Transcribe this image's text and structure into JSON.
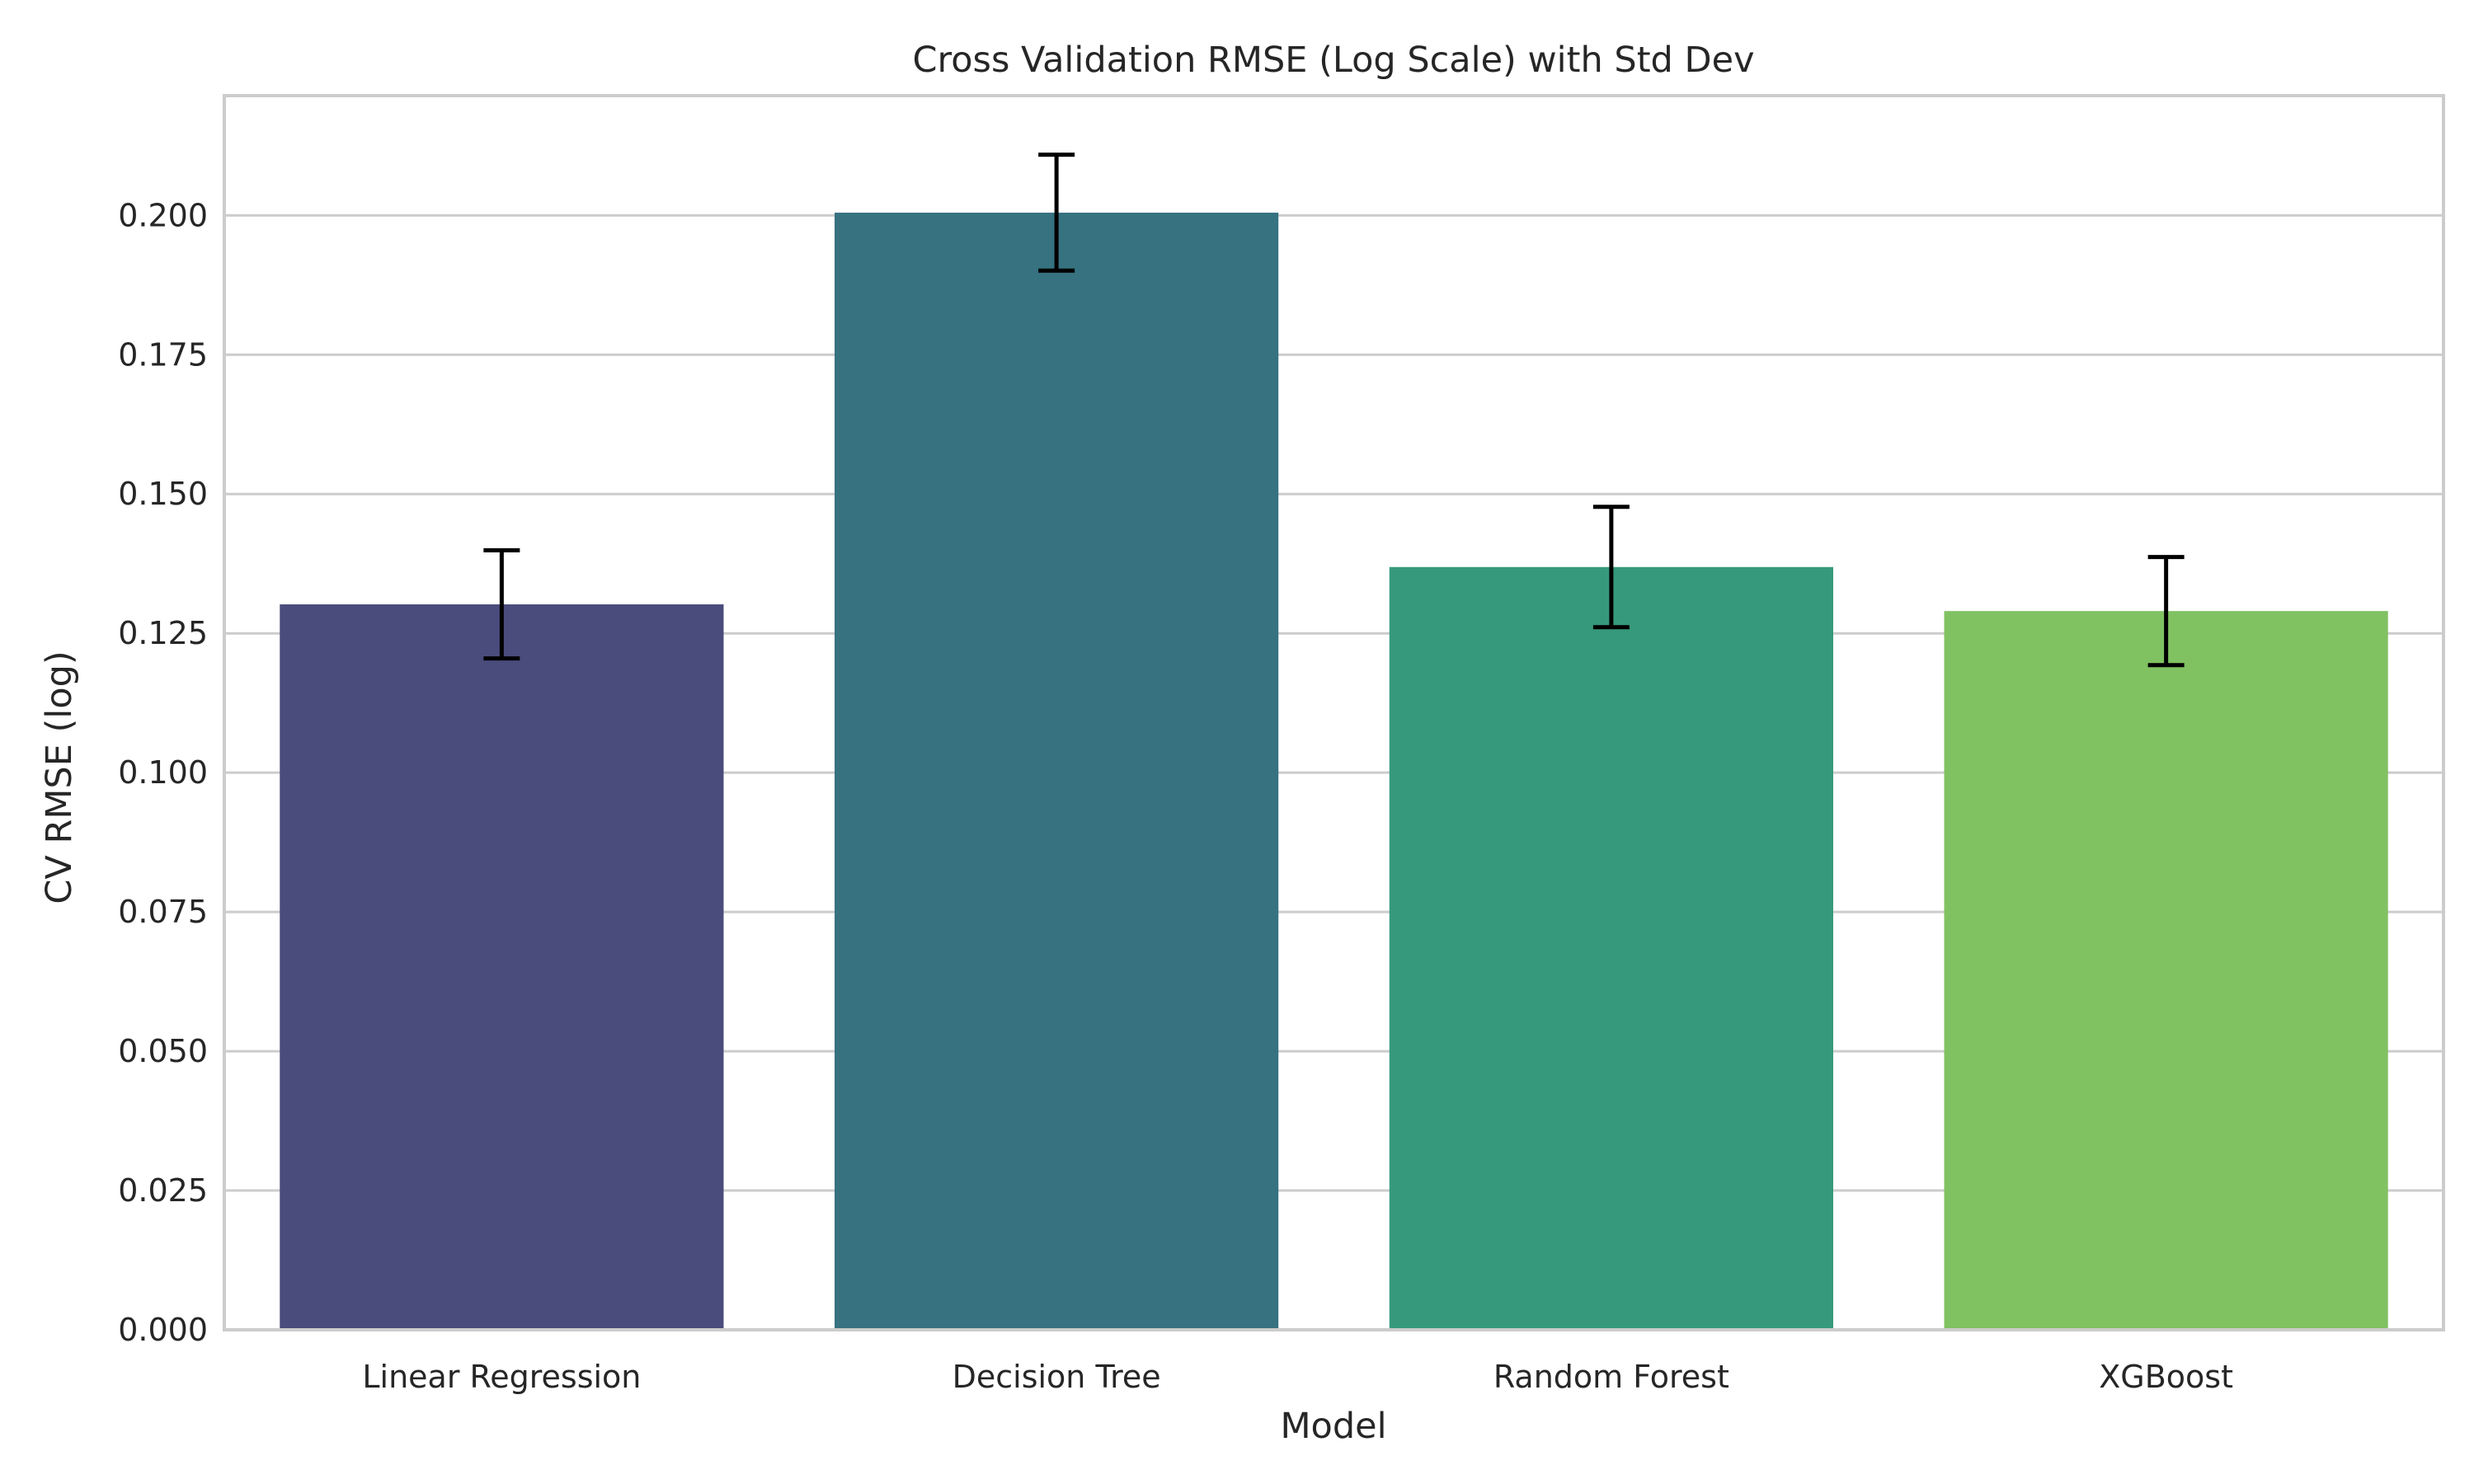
{
  "chart_data": {
    "type": "bar",
    "title": "Cross Validation RMSE (Log Scale) with Std Dev",
    "xlabel": "Model",
    "ylabel": "CV RMSE (log)",
    "categories": [
      "Linear Regression",
      "Decision Tree",
      "Random Forest",
      "XGBoost"
    ],
    "values": [
      0.1302,
      0.2005,
      0.1369,
      0.129
    ],
    "errors": [
      0.0097,
      0.0104,
      0.0108,
      0.0097
    ],
    "colors": [
      "#4a4c7c",
      "#367280",
      "#36997b",
      "#80c262"
    ],
    "ylim": [
      0,
      0.2215
    ],
    "yticks": [
      0.0,
      0.025,
      0.05,
      0.075,
      0.1,
      0.125,
      0.15,
      0.175,
      0.2
    ],
    "ytick_labels": [
      "0.000",
      "0.025",
      "0.050",
      "0.075",
      "0.100",
      "0.125",
      "0.150",
      "0.175",
      "0.200"
    ],
    "grid": true,
    "grid_axis": "y"
  }
}
